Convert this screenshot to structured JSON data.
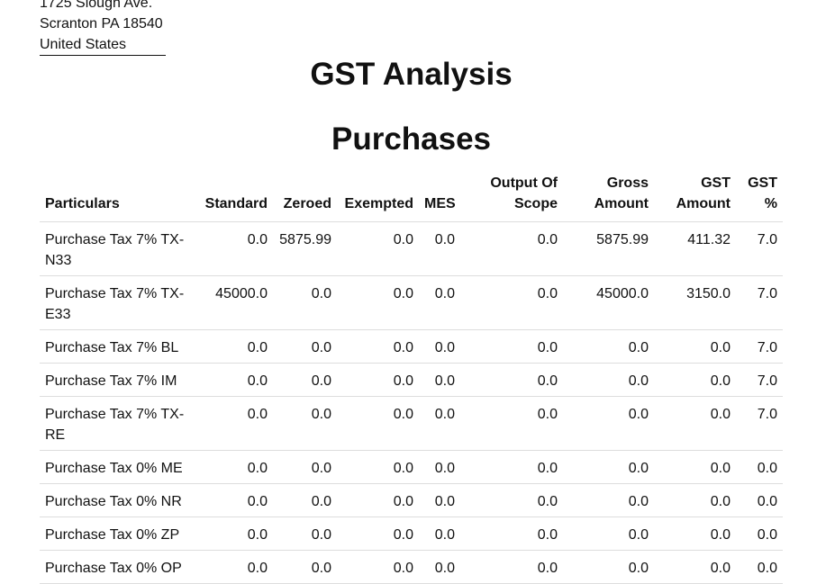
{
  "address": {
    "street": "1725 Slough Ave.",
    "city_line": "Scranton PA 18540",
    "country": "United States"
  },
  "report_title": "GST Analysis",
  "section_title": "Purchases",
  "table": {
    "headers": {
      "particulars": "Particulars",
      "standard": "Standard",
      "zeroed": "Zeroed",
      "exempted": "Exempted",
      "mes": "MES",
      "output_of_scope": "Output Of Scope",
      "gross_amount": "Gross Amount",
      "gst_amount": "GST Amount",
      "gst_percent": "GST %"
    },
    "rows": [
      {
        "particulars": "Purchase Tax 7% TX-N33",
        "standard": "0.0",
        "zeroed": "5875.99",
        "exempted": "0.0",
        "mes": "0.0",
        "output_of_scope": "0.0",
        "gross_amount": "5875.99",
        "gst_amount": "411.32",
        "gst_percent": "7.0"
      },
      {
        "particulars": "Purchase Tax 7% TX-E33",
        "standard": "45000.0",
        "zeroed": "0.0",
        "exempted": "0.0",
        "mes": "0.0",
        "output_of_scope": "0.0",
        "gross_amount": "45000.0",
        "gst_amount": "3150.0",
        "gst_percent": "7.0"
      },
      {
        "particulars": "Purchase Tax 7% BL",
        "standard": "0.0",
        "zeroed": "0.0",
        "exempted": "0.0",
        "mes": "0.0",
        "output_of_scope": "0.0",
        "gross_amount": "0.0",
        "gst_amount": "0.0",
        "gst_percent": "7.0"
      },
      {
        "particulars": "Purchase Tax 7% IM",
        "standard": "0.0",
        "zeroed": "0.0",
        "exempted": "0.0",
        "mes": "0.0",
        "output_of_scope": "0.0",
        "gross_amount": "0.0",
        "gst_amount": "0.0",
        "gst_percent": "7.0"
      },
      {
        "particulars": "Purchase Tax 7% TX-RE",
        "standard": "0.0",
        "zeroed": "0.0",
        "exempted": "0.0",
        "mes": "0.0",
        "output_of_scope": "0.0",
        "gross_amount": "0.0",
        "gst_amount": "0.0",
        "gst_percent": "7.0"
      },
      {
        "particulars": "Purchase Tax 0% ME",
        "standard": "0.0",
        "zeroed": "0.0",
        "exempted": "0.0",
        "mes": "0.0",
        "output_of_scope": "0.0",
        "gross_amount": "0.0",
        "gst_amount": "0.0",
        "gst_percent": "0.0"
      },
      {
        "particulars": "Purchase Tax 0% NR",
        "standard": "0.0",
        "zeroed": "0.0",
        "exempted": "0.0",
        "mes": "0.0",
        "output_of_scope": "0.0",
        "gross_amount": "0.0",
        "gst_amount": "0.0",
        "gst_percent": "0.0"
      },
      {
        "particulars": "Purchase Tax 0% ZP",
        "standard": "0.0",
        "zeroed": "0.0",
        "exempted": "0.0",
        "mes": "0.0",
        "output_of_scope": "0.0",
        "gross_amount": "0.0",
        "gst_amount": "0.0",
        "gst_percent": "0.0"
      },
      {
        "particulars": "Purchase Tax 0% OP",
        "standard": "0.0",
        "zeroed": "0.0",
        "exempted": "0.0",
        "mes": "0.0",
        "output_of_scope": "0.0",
        "gross_amount": "0.0",
        "gst_amount": "0.0",
        "gst_percent": "0.0"
      }
    ]
  }
}
